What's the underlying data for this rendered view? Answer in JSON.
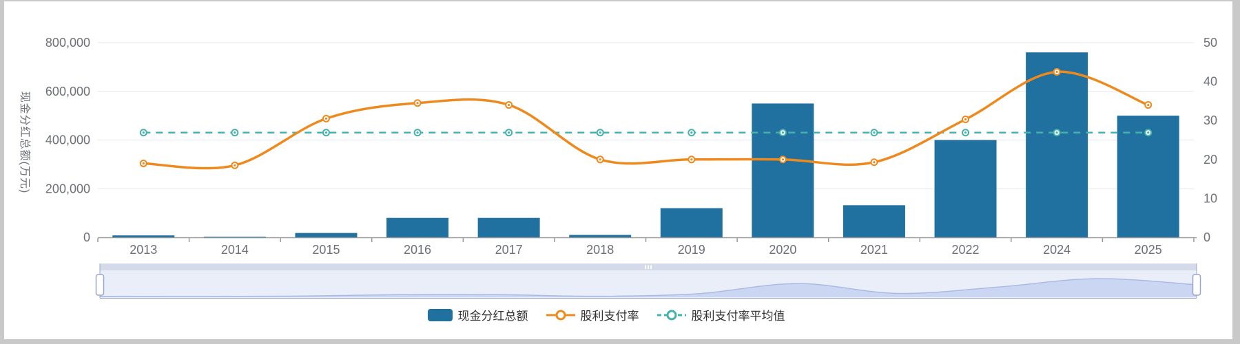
{
  "chart_data": {
    "type": "bar",
    "title": "",
    "categories": [
      "2013",
      "2014",
      "2015",
      "2016",
      "2017",
      "2018",
      "2019",
      "2020",
      "2021",
      "2022",
      "2024",
      "2025"
    ],
    "series": [
      {
        "name": "现金分红总额",
        "type": "bar",
        "axis": "left",
        "unit": "万元",
        "color": "#2071A0",
        "values": [
          8000,
          3000,
          18000,
          80000,
          80000,
          10000,
          120000,
          550000,
          132000,
          400000,
          760000,
          500000
        ]
      },
      {
        "name": "股利支付率",
        "type": "line",
        "smooth": true,
        "axis": "right",
        "unit": "%",
        "color": "#EE8A1D",
        "values": [
          19,
          18.5,
          30.5,
          34.5,
          34,
          20,
          20,
          20,
          19.3,
          30.3,
          42.5,
          34
        ]
      },
      {
        "name": "股利支付率平均值",
        "type": "line",
        "style": "dashed",
        "axis": "right",
        "unit": "%",
        "color": "#46B2AD",
        "average_value": 26.9
      }
    ],
    "y_axis_left": {
      "name": "现金分红总额(万元)",
      "min": 0,
      "max": 800000,
      "ticks": [
        "0",
        "200,000",
        "400,000",
        "600,000",
        "800,000"
      ]
    },
    "y_axis_right": {
      "min": 0,
      "max": 50,
      "ticks": [
        "0",
        "10",
        "20",
        "30",
        "40",
        "50"
      ]
    },
    "grid": "horizontal-only",
    "legend": {
      "position": "bottom",
      "items": [
        {
          "label": "现金分红总额",
          "icon": "bar-swatch"
        },
        {
          "label": "股利支付率",
          "icon": "line-circle-swatch"
        },
        {
          "label": "股利支付率平均值",
          "icon": "dashed-line-circle-swatch"
        }
      ]
    },
    "data_zoom": {
      "type": "slider",
      "range": "full",
      "grip_icon": "drag-grip-icon"
    }
  },
  "colors": {
    "bar": "#2071A0",
    "payout_line": "#EE8A1D",
    "average_line": "#46B2AD",
    "axis_label": "#6E7079",
    "grid_line": "#E4E7ED",
    "axis_line": "#999999",
    "zoom_track": "#EAEEF9",
    "zoom_area_fill": "#CBD7F2",
    "zoom_area_stroke": "#A9BBE5",
    "zoom_move_handle": "#D4DAEA",
    "zoom_handle_border": "#98A7C9",
    "frame_border": "#C9C9C9"
  }
}
